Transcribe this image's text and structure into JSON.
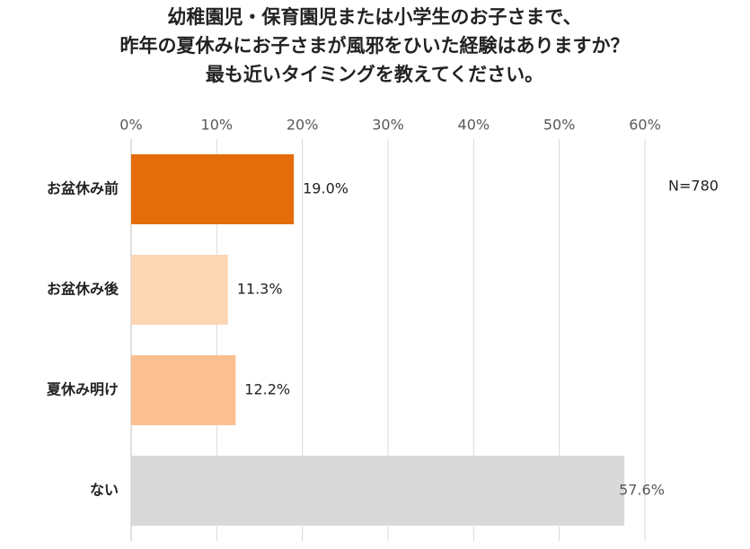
{
  "chart_data": {
    "type": "hbar",
    "title": [
      "幼稚園児・保育園児または小学生のお子さまで、",
      "昨年の夏休みにお子さまが風邪をひいた経験はありますか？",
      "最も近いタイミングを教えてください。"
    ],
    "categories": [
      "お盆休み前",
      "お盆休み後",
      "夏休み明け",
      "ない"
    ],
    "values": [
      19.0,
      11.3,
      12.2,
      57.6
    ],
    "value_labels": [
      "19.0%",
      "11.3%",
      "12.2%",
      "57.6%"
    ],
    "colors": [
      "#e46c0a",
      "#fcd5b5",
      "#fac090",
      "#d9d9d9"
    ],
    "xlim": [
      0,
      60
    ],
    "xticks": [
      {
        "value": 0,
        "label": "0%"
      },
      {
        "value": 10,
        "label": "10%"
      },
      {
        "value": 20,
        "label": "20%"
      },
      {
        "value": 30,
        "label": "30%"
      },
      {
        "value": 40,
        "label": "40%"
      },
      {
        "value": 50,
        "label": "50%"
      },
      {
        "value": 60,
        "label": "60%"
      }
    ],
    "grid": true,
    "annotation": "N=780"
  }
}
